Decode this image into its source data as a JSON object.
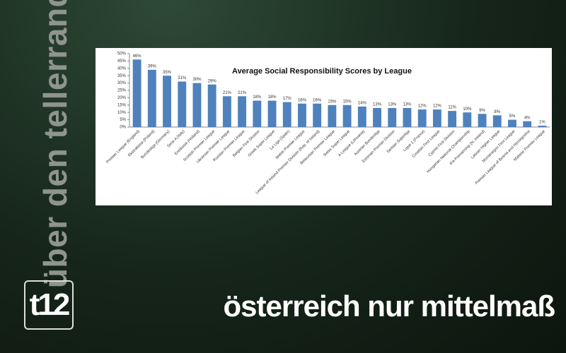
{
  "branding": {
    "tagline": "über den tellerrand",
    "logo": "t12",
    "headline": "österreich nur mittelmaß"
  },
  "chart_data": {
    "type": "bar",
    "title": "Average Social Responsibility Scores by League",
    "categories": [
      "Premier League (England)",
      "Ekstraklasa (Poland)",
      "Bundesliga (Germany)",
      "Serie A (Italy)",
      "Eredivisie (Holland)",
      "Scottish Premier League",
      "Ukrainian Premier League",
      "Russian Premier League",
      "Belgian First Division",
      "Greek Super League",
      "La Liga (Spain)",
      "Welsh Premier League",
      "League of Ireland Premier Division (Rep. of Ireland)",
      "Belarusian Premier League",
      "Swiss Super League",
      "A League (Lithuania)",
      "Austrian Bundesliga",
      "Estonian Premier Division",
      "Serbian Superliga",
      "Ligue 1 (France)",
      "Croatian First League",
      "Cypriot First Division",
      "Hungarian National Championship",
      "IFA Premiership (N. Ireland)",
      "Latvian Higher League",
      "Montenegrin First League",
      "Premier League of Bosnia and Herzegovina",
      "Maltese Premier League"
    ],
    "values": [
      46,
      39,
      35,
      31,
      30,
      29,
      21,
      21,
      18,
      18,
      17,
      16,
      16,
      15,
      15,
      14,
      13,
      13,
      13,
      12,
      12,
      11,
      10,
      9,
      8,
      5,
      4,
      1
    ],
    "value_labels": [
      "46%",
      "39%",
      "35%",
      "31%",
      "30%",
      "29%",
      "21%",
      "21%",
      "18%",
      "18%",
      "17%",
      "16%",
      "16%",
      "15%",
      "15%",
      "14%",
      "13%",
      "13%",
      "13%",
      "12%",
      "12%",
      "11%",
      "10%",
      "9%",
      "8%",
      "5%",
      "4%",
      "1%"
    ],
    "color": "#4f81bd",
    "ylim": [
      0,
      50
    ],
    "yticks": [
      {
        "value": 0,
        "label": "0%"
      },
      {
        "value": 5,
        "label": "5%"
      },
      {
        "value": 10,
        "label": "10%"
      },
      {
        "value": 15,
        "label": "15%"
      },
      {
        "value": 20,
        "label": "20%"
      },
      {
        "value": 25,
        "label": "25%"
      },
      {
        "value": 30,
        "label": "30%"
      },
      {
        "value": 35,
        "label": "35%"
      },
      {
        "value": 40,
        "label": "40%"
      },
      {
        "value": 45,
        "label": "45%"
      },
      {
        "value": 50,
        "label": "50%"
      }
    ]
  }
}
